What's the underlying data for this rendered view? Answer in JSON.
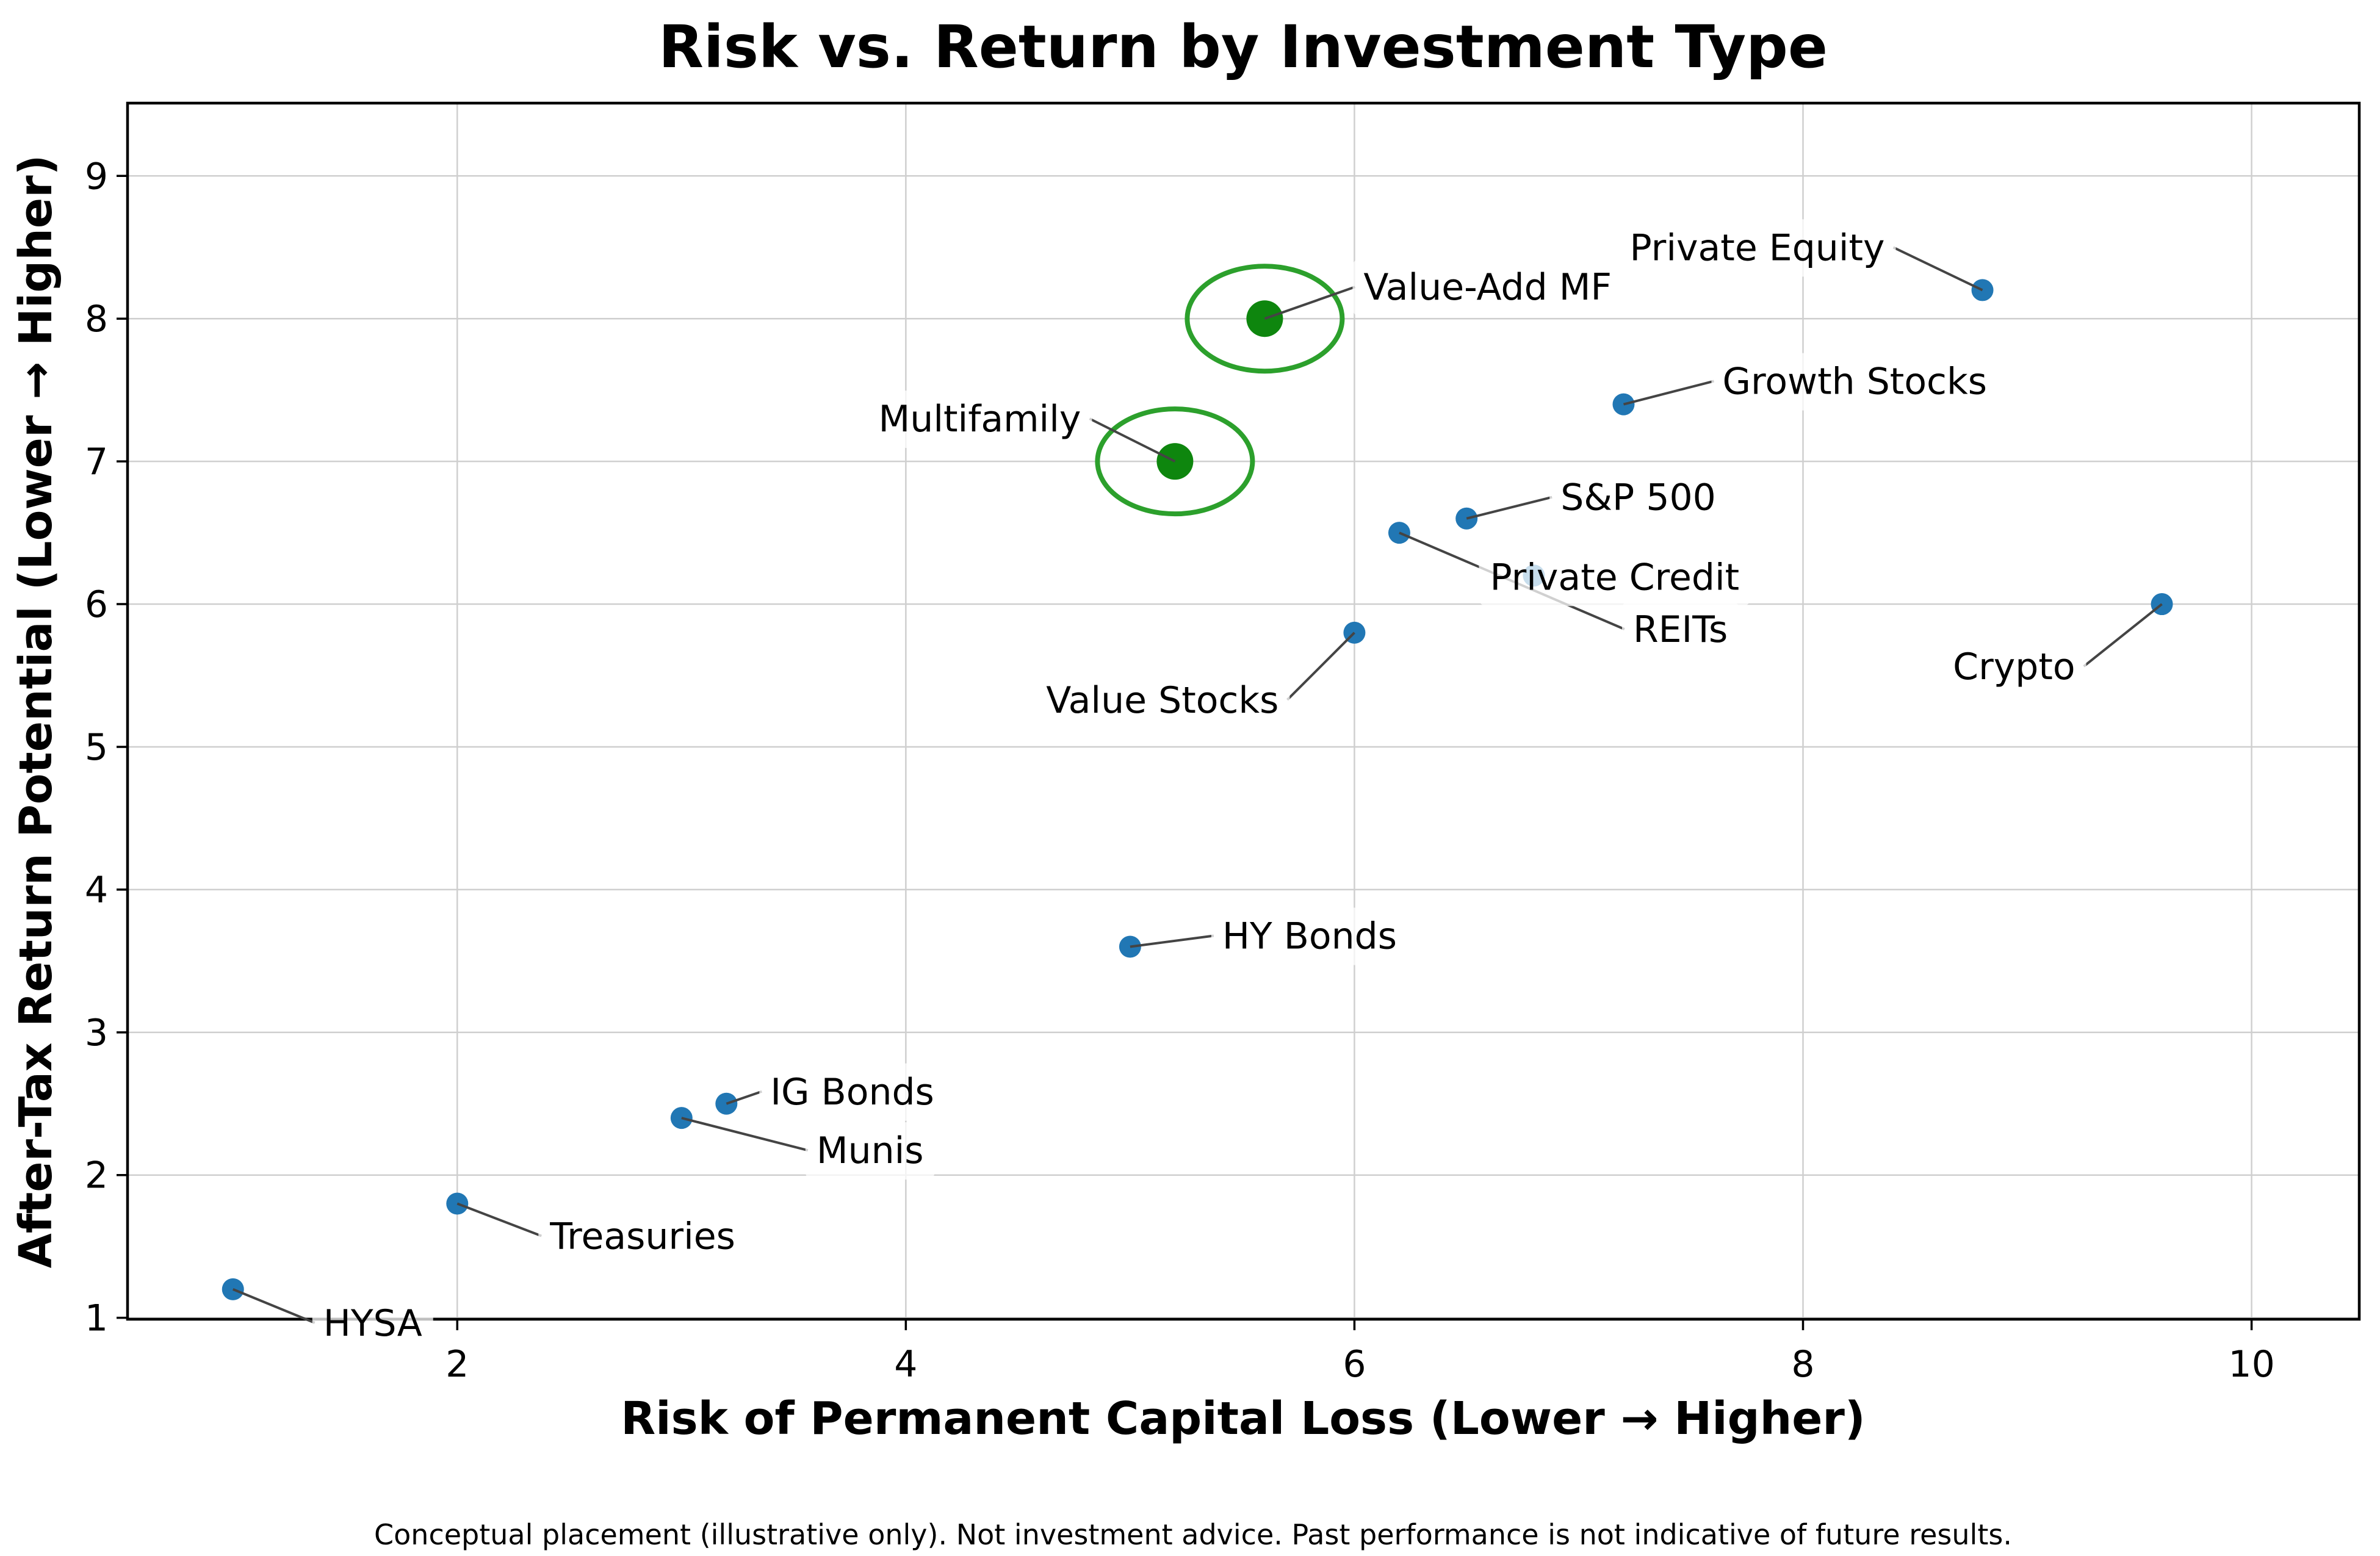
{
  "chart_data": {
    "type": "scatter",
    "title": "Risk vs. Return by Investment Type",
    "xlabel": "Risk of Permanent Capital Loss (Lower → Higher)",
    "ylabel": "After-Tax Return Potential (Lower → Higher)",
    "footer": "Conceptual placement (illustrative only). Not investment advice. Past performance is not indicative of future results.",
    "xlim": [
      0.53,
      10.48
    ],
    "ylim": [
      0.99,
      9.51
    ],
    "xticks": [
      2,
      4,
      6,
      8,
      10
    ],
    "yticks": [
      1,
      2,
      3,
      4,
      5,
      6,
      7,
      8,
      9
    ],
    "grid": true,
    "legend": "none",
    "colors": {
      "point_blue": "#2177b4",
      "point_green": "#0e860e",
      "ring_green": "#2ca02c",
      "leader_line": "#444444",
      "gridline": "#cfcfcf",
      "spine": "#000000",
      "label_box": "rgba(255,255,255,0.75)"
    },
    "series": [
      {
        "group": "standard-assets",
        "marker_radius": 18,
        "ring": false,
        "points": [
          {
            "label": "HYSA",
            "x": 1.0,
            "y": 1.2,
            "label_dx": 148,
            "label_dy": 55,
            "side": "left"
          },
          {
            "label": "Treasuries",
            "x": 2.0,
            "y": 1.8,
            "label_dx": 152,
            "label_dy": 53,
            "side": "left"
          },
          {
            "label": "Munis",
            "x": 3.0,
            "y": 2.4,
            "label_dx": 221,
            "label_dy": 53,
            "side": "left"
          },
          {
            "label": "IG Bonds",
            "x": 3.2,
            "y": 2.5,
            "label_dx": 72,
            "label_dy": -20,
            "side": "left"
          },
          {
            "label": "HY Bonds",
            "x": 5.0,
            "y": 3.6,
            "label_dx": 151,
            "label_dy": -18,
            "side": "left"
          },
          {
            "label": "Value Stocks",
            "x": 6.0,
            "y": 5.8,
            "label_dx": -124,
            "label_dy": 110,
            "side": "right"
          },
          {
            "label": "REITs",
            "x": 6.2,
            "y": 6.5,
            "label_dx": 383,
            "label_dy": 158,
            "side": "left"
          },
          {
            "label": "S&P 500",
            "x": 6.5,
            "y": 6.6,
            "label_dx": 154,
            "label_dy": -35,
            "side": "left"
          },
          {
            "label": "Private Credit",
            "x": 6.8,
            "y": 6.2,
            "label_dx": -72,
            "label_dy": 2,
            "side": "over"
          },
          {
            "label": "Growth Stocks",
            "x": 7.2,
            "y": 7.4,
            "label_dx": 162,
            "label_dy": -38,
            "side": "left"
          },
          {
            "label": "Private Equity",
            "x": 8.8,
            "y": 8.2,
            "label_dx": -160,
            "label_dy": -70,
            "side": "right"
          },
          {
            "label": "Crypto",
            "x": 9.6,
            "y": 6.0,
            "label_dx": -142,
            "label_dy": 102,
            "side": "right"
          }
        ]
      },
      {
        "group": "highlighted-multifamily",
        "marker_radius": 30,
        "ring": true,
        "ring_rx": 127,
        "ring_ry": 86,
        "points": [
          {
            "label": "Multifamily",
            "x": 5.2,
            "y": 7.0,
            "label_dx": -154,
            "label_dy": -70,
            "side": "right"
          },
          {
            "label": "Value-Add MF",
            "x": 5.6,
            "y": 8.0,
            "label_dx": 162,
            "label_dy": -52,
            "side": "left"
          }
        ]
      }
    ]
  }
}
